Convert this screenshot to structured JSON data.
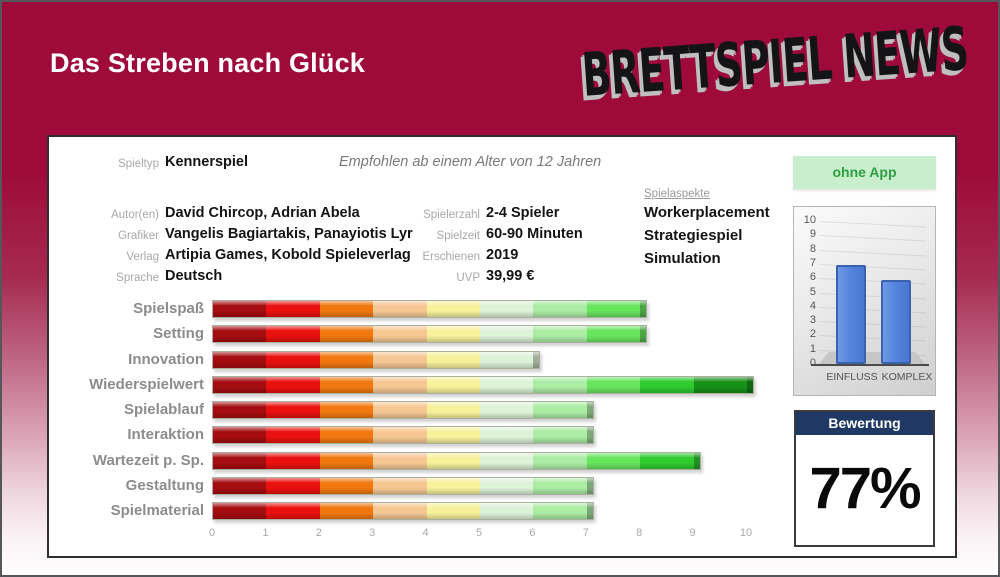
{
  "header": {
    "title": "Das Streben nach Glück",
    "logo_text": "BRETTSPIEL NEWS",
    "brand_color": "#9e0b3a"
  },
  "info": {
    "spieltyp": {
      "label": "Spieltyp",
      "value": "Kennerspiel"
    },
    "age_note": "Empfohlen ab einem Alter von 12 Jahren",
    "left_rows": [
      {
        "label": "Autor(en)",
        "value": "David Chircop, Adrian Abela"
      },
      {
        "label": "Grafiker",
        "value": "Vangelis Bagiartakis, Panayiotis Lyr"
      },
      {
        "label": "Verlag",
        "value": "Artipia Games, Kobold Spieleverlag"
      },
      {
        "label": "Sprache",
        "value": "Deutsch"
      }
    ],
    "right_rows": [
      {
        "label": "Spielerzahl",
        "value": "2-4 Spieler"
      },
      {
        "label": "Spielzeit",
        "value": "60-90 Minuten"
      },
      {
        "label": "Erschienen",
        "value": "2019"
      },
      {
        "label": "UVP",
        "value": "39,99 €"
      }
    ],
    "aspects": {
      "label": "Spielaspekte",
      "items": [
        "Workerplacement",
        "Strategiespiel",
        "Simulation"
      ]
    }
  },
  "badge": {
    "label": "ohne App",
    "bg": "#c9eecd",
    "color": "#2f9e41"
  },
  "rating": {
    "title": "Bewertung",
    "value": "77%",
    "header_bg": "#1f3864"
  },
  "chart_data": [
    {
      "type": "bar",
      "orientation": "horizontal",
      "title": "Kategoriebewertung",
      "categories": [
        "Spielspaß",
        "Setting",
        "Innovation",
        "Wiederspielwert",
        "Spielablauf",
        "Interaktion",
        "Wartezeit p. Sp.",
        "Gestaltung",
        "Spielmaterial"
      ],
      "values": [
        8,
        8,
        6,
        10,
        7,
        7,
        9,
        7,
        7
      ],
      "xlim": [
        0,
        10
      ],
      "x_ticks": [
        0,
        1,
        2,
        3,
        4,
        5,
        6,
        7,
        8,
        9,
        10
      ],
      "grid": false,
      "segment_colors": [
        "#a50d10",
        "#e8110f",
        "#f0780f",
        "#f6c793",
        "#f7f19b",
        "#ddf3d8",
        "#aceca5",
        "#69e55f",
        "#2fcb2f",
        "#179117"
      ]
    },
    {
      "type": "bar",
      "orientation": "vertical",
      "categories": [
        "EINFLUSS",
        "KOMPLEX"
      ],
      "values": [
        6.9,
        5.9
      ],
      "ylim": [
        0,
        10
      ],
      "y_ticks": [
        10,
        9,
        8,
        7,
        6,
        5,
        4,
        3,
        2,
        1,
        0
      ],
      "bar_color": "#5585dd"
    }
  ]
}
